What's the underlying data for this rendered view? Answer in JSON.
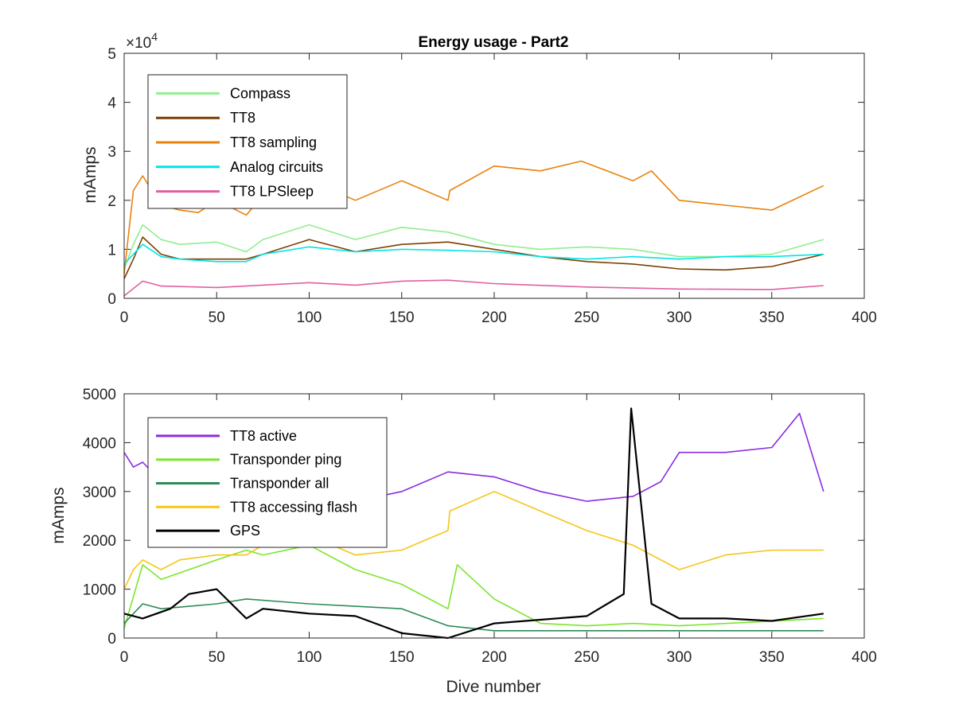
{
  "chart_data": [
    {
      "type": "line",
      "title": "Energy usage - Part2",
      "xlabel": "",
      "ylabel": "mAmps",
      "y_exponent_label": "×10",
      "y_exponent_power": "4",
      "xlim": [
        0,
        400
      ],
      "ylim": [
        0,
        50000
      ],
      "xticks": [
        "0",
        "50",
        "100",
        "150",
        "200",
        "250",
        "300",
        "350",
        "400"
      ],
      "yticks": [
        "0",
        "1",
        "2",
        "3",
        "4",
        "5"
      ],
      "legend_position": "top-left",
      "series": [
        {
          "name": "Compass",
          "color": "#90EE90",
          "x": [
            0,
            5,
            10,
            20,
            30,
            50,
            66,
            75,
            100,
            125,
            150,
            175,
            200,
            225,
            250,
            275,
            300,
            325,
            350,
            378
          ],
          "y": [
            6000,
            11000,
            15000,
            12000,
            11000,
            11500,
            9500,
            12000,
            15000,
            12000,
            14500,
            13500,
            11000,
            10000,
            10500,
            10000,
            8500,
            8500,
            9000,
            12000
          ]
        },
        {
          "name": "TT8",
          "color": "#7B3F00",
          "x": [
            0,
            5,
            10,
            20,
            30,
            50,
            66,
            75,
            100,
            125,
            150,
            175,
            200,
            225,
            250,
            275,
            300,
            325,
            350,
            378
          ],
          "y": [
            4000,
            8000,
            12500,
            9000,
            8000,
            8000,
            8000,
            9000,
            12000,
            9500,
            11000,
            11500,
            10000,
            8500,
            7500,
            7000,
            6000,
            5800,
            6500,
            9000
          ]
        },
        {
          "name": "TT8 sampling",
          "color": "#E8820C",
          "x": [
            0,
            5,
            10,
            20,
            30,
            40,
            50,
            66,
            75,
            100,
            125,
            150,
            175,
            176,
            200,
            225,
            247,
            275,
            285,
            300,
            325,
            350,
            378
          ],
          "y": [
            5000,
            22000,
            25000,
            19000,
            18000,
            17500,
            20000,
            17000,
            21000,
            24000,
            20000,
            24000,
            20000,
            22000,
            27000,
            26000,
            28000,
            24000,
            26000,
            20000,
            19000,
            18000,
            23000
          ]
        },
        {
          "name": "Analog circuits",
          "color": "#00E5E5",
          "x": [
            0,
            5,
            10,
            20,
            30,
            50,
            66,
            75,
            100,
            125,
            150,
            175,
            200,
            225,
            250,
            275,
            300,
            325,
            350,
            378
          ],
          "y": [
            7000,
            9000,
            11000,
            8500,
            8000,
            7500,
            7500,
            9000,
            10500,
            9500,
            10000,
            9800,
            9500,
            8500,
            8000,
            8500,
            8000,
            8500,
            8500,
            9000
          ]
        },
        {
          "name": "TT8 LPSleep",
          "color": "#E060A0",
          "x": [
            0,
            10,
            20,
            50,
            100,
            125,
            150,
            175,
            200,
            250,
            300,
            350,
            378
          ],
          "y": [
            500,
            3500,
            2500,
            2200,
            3200,
            2700,
            3500,
            3700,
            3000,
            2300,
            1900,
            1800,
            2600
          ]
        }
      ]
    },
    {
      "type": "line",
      "title": "",
      "xlabel": "Dive number",
      "ylabel": "mAmps",
      "xlim": [
        0,
        400
      ],
      "ylim": [
        0,
        5000
      ],
      "xticks": [
        "0",
        "50",
        "100",
        "150",
        "200",
        "250",
        "300",
        "350",
        "400"
      ],
      "yticks": [
        "0",
        "1000",
        "2000",
        "3000",
        "4000",
        "5000"
      ],
      "legend_position": "top-left",
      "series": [
        {
          "name": "TT8 active",
          "color": "#8A2BE2",
          "x": [
            0,
            5,
            10,
            20,
            30,
            50,
            66,
            100,
            125,
            150,
            175,
            200,
            225,
            250,
            275,
            290,
            300,
            325,
            350,
            365,
            378
          ],
          "y": [
            3800,
            3500,
            3600,
            3200,
            3300,
            3000,
            2900,
            2700,
            2800,
            3000,
            3400,
            3300,
            3000,
            2800,
            2900,
            3200,
            3800,
            3800,
            3900,
            4600,
            3000
          ]
        },
        {
          "name": "Transponder ping",
          "color": "#7CE62C",
          "x": [
            0,
            10,
            20,
            50,
            66,
            75,
            100,
            125,
            150,
            175,
            180,
            200,
            225,
            250,
            275,
            300,
            378
          ],
          "y": [
            200,
            1500,
            1200,
            1600,
            1800,
            1700,
            1900,
            1400,
            1100,
            600,
            1500,
            800,
            300,
            250,
            300,
            250,
            400
          ]
        },
        {
          "name": "Transponder all",
          "color": "#2E8B57",
          "x": [
            0,
            10,
            20,
            50,
            66,
            100,
            125,
            150,
            175,
            200,
            250,
            300,
            378
          ],
          "y": [
            300,
            700,
            600,
            700,
            800,
            700,
            650,
            600,
            250,
            150,
            150,
            150,
            150
          ]
        },
        {
          "name": "TT8 accessing flash",
          "color": "#F5C518",
          "x": [
            0,
            5,
            10,
            20,
            30,
            50,
            66,
            75,
            100,
            125,
            150,
            175,
            176,
            200,
            225,
            250,
            275,
            300,
            325,
            350,
            378
          ],
          "y": [
            1000,
            1400,
            1600,
            1400,
            1600,
            1700,
            1700,
            1900,
            2100,
            1700,
            1800,
            2200,
            2600,
            3000,
            2600,
            2200,
            1900,
            1400,
            1700,
            1800,
            1800
          ]
        },
        {
          "name": "GPS",
          "color": "#000000",
          "x": [
            0,
            10,
            25,
            35,
            50,
            66,
            75,
            100,
            125,
            150,
            175,
            200,
            250,
            270,
            274,
            285,
            300,
            325,
            350,
            378
          ],
          "y": [
            500,
            400,
            600,
            900,
            1000,
            400,
            600,
            500,
            450,
            100,
            0,
            300,
            450,
            900,
            4700,
            700,
            400,
            400,
            350,
            500
          ]
        }
      ]
    }
  ]
}
